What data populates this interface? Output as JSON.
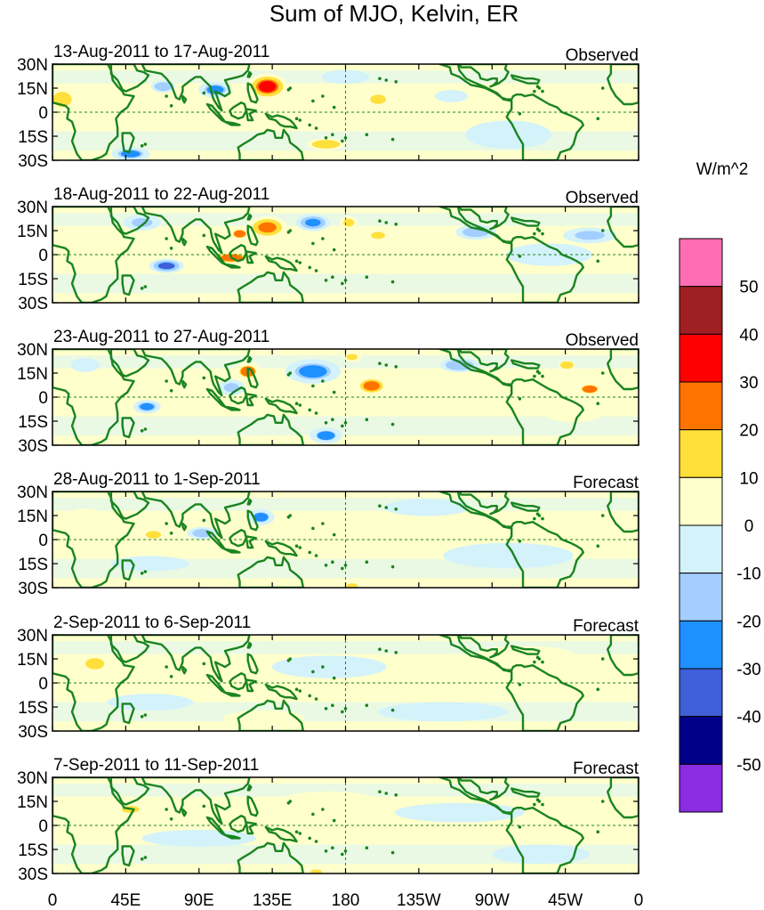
{
  "chart_data": {
    "type": "heatmap",
    "title": "Sum of MJO, Kelvin, ER",
    "units_label": "W/m^2",
    "x_tick_labels": [
      "0",
      "45E",
      "90E",
      "135E",
      "180",
      "135W",
      "90W",
      "45W",
      "0"
    ],
    "x_tick_values_deg_east": [
      0,
      45,
      90,
      135,
      180,
      225,
      270,
      315,
      360
    ],
    "y_tick_labels": [
      "30N",
      "15N",
      "0",
      "15S",
      "30S"
    ],
    "y_tick_values_deg": [
      30,
      15,
      0,
      -15,
      -30
    ],
    "xlim": [
      0,
      360
    ],
    "ylim": [
      -30,
      30
    ],
    "colorbar": {
      "tick_labels": [
        "50",
        "40",
        "30",
        "20",
        "10",
        "0",
        "-10",
        "-20",
        "-30",
        "-40",
        "-50"
      ],
      "levels": [
        -50,
        -40,
        -30,
        -20,
        -10,
        0,
        10,
        20,
        30,
        40,
        50
      ],
      "colors": [
        "#8B2BE2",
        "#00008B",
        "#3F5FD8",
        "#1E90FF",
        "#A3CEFF",
        "#D4F2FA",
        "#FFFFCC",
        "#FFDF3A",
        "#FF7300",
        "#FF0000",
        "#A01F22",
        "#FF6EB4"
      ]
    },
    "land_color": "#1A8420",
    "panels": [
      {
        "period": "13-Aug-2011 to 17-Aug-2011",
        "status": "Observed",
        "anomalies": [
          {
            "lon": 132,
            "lat": 16,
            "rlon": 14,
            "rlat": 9,
            "value": 35
          },
          {
            "lon": 200,
            "lat": 8,
            "rlon": 10,
            "rlat": 6,
            "value": 18
          },
          {
            "lon": 168,
            "lat": -20,
            "rlon": 16,
            "rlat": 5,
            "value": 14
          },
          {
            "lon": 6,
            "lat": 8,
            "rlon": 10,
            "rlat": 8,
            "value": 12
          },
          {
            "lon": 140,
            "lat": -6,
            "rlon": 24,
            "rlat": 8,
            "value": 7
          },
          {
            "lon": 100,
            "lat": 14,
            "rlon": 12,
            "rlat": 6,
            "value": -24
          },
          {
            "lon": 68,
            "lat": 16,
            "rlon": 10,
            "rlat": 5,
            "value": -14
          },
          {
            "lon": 48,
            "lat": -26,
            "rlon": 14,
            "rlat": 5,
            "value": -24
          },
          {
            "lon": 180,
            "lat": 22,
            "rlon": 20,
            "rlat": 6,
            "value": -8
          },
          {
            "lon": 245,
            "lat": 10,
            "rlon": 16,
            "rlat": 6,
            "value": -10
          },
          {
            "lon": 310,
            "lat": 6,
            "rlon": 14,
            "rlat": 5,
            "value": 8
          },
          {
            "lon": 280,
            "lat": -14,
            "rlon": 30,
            "rlat": 10,
            "value": -6
          }
        ]
      },
      {
        "period": "18-Aug-2011 to 22-Aug-2011",
        "status": "Observed",
        "anomalies": [
          {
            "lon": 132,
            "lat": 17,
            "rlon": 14,
            "rlat": 8,
            "value": 30
          },
          {
            "lon": 115,
            "lat": 13,
            "rlon": 8,
            "rlat": 5,
            "value": 22
          },
          {
            "lon": 110,
            "lat": -2,
            "rlon": 16,
            "rlat": 5,
            "value": 24
          },
          {
            "lon": 182,
            "lat": 20,
            "rlon": 7,
            "rlat": 5,
            "value": 18
          },
          {
            "lon": 200,
            "lat": 12,
            "rlon": 8,
            "rlat": 4,
            "value": 14
          },
          {
            "lon": 160,
            "lat": 20,
            "rlon": 12,
            "rlat": 6,
            "value": -30
          },
          {
            "lon": 70,
            "lat": -7,
            "rlon": 12,
            "rlat": 5,
            "value": -32
          },
          {
            "lon": 55,
            "lat": 20,
            "rlon": 14,
            "rlat": 6,
            "value": -20
          },
          {
            "lon": 260,
            "lat": 14,
            "rlon": 16,
            "rlat": 6,
            "value": -16
          },
          {
            "lon": 330,
            "lat": 12,
            "rlon": 20,
            "rlat": 6,
            "value": -20
          },
          {
            "lon": 170,
            "lat": -5,
            "rlon": 30,
            "rlat": 8,
            "value": 8
          },
          {
            "lon": 20,
            "lat": 12,
            "rlon": 14,
            "rlat": 6,
            "value": 10
          },
          {
            "lon": 305,
            "lat": 0,
            "rlon": 30,
            "rlat": 8,
            "value": -6
          }
        ]
      },
      {
        "period": "23-Aug-2011 to 27-Aug-2011",
        "status": "Observed",
        "anomalies": [
          {
            "lon": 120,
            "lat": 16,
            "rlon": 10,
            "rlat": 7,
            "value": 22
          },
          {
            "lon": 196,
            "lat": 7,
            "rlon": 12,
            "rlat": 7,
            "value": 26
          },
          {
            "lon": 184,
            "lat": 25,
            "rlon": 7,
            "rlat": 4,
            "value": 18
          },
          {
            "lon": 330,
            "lat": 5,
            "rlon": 10,
            "rlat": 5,
            "value": 22
          },
          {
            "lon": 316,
            "lat": 20,
            "rlon": 7,
            "rlat": 4,
            "value": 12
          },
          {
            "lon": 160,
            "lat": 16,
            "rlon": 20,
            "rlat": 9,
            "value": -24
          },
          {
            "lon": 110,
            "lat": 6,
            "rlon": 10,
            "rlat": 6,
            "value": -20
          },
          {
            "lon": 168,
            "lat": -24,
            "rlon": 12,
            "rlat": 6,
            "value": -22
          },
          {
            "lon": 58,
            "lat": -6,
            "rlon": 10,
            "rlat": 5,
            "value": -24
          },
          {
            "lon": 250,
            "lat": 20,
            "rlon": 16,
            "rlat": 6,
            "value": -14
          },
          {
            "lon": 320,
            "lat": -10,
            "rlon": 24,
            "rlat": 8,
            "value": 8
          },
          {
            "lon": 20,
            "lat": 20,
            "rlon": 12,
            "rlat": 6,
            "value": -8
          },
          {
            "lon": 240,
            "lat": -4,
            "rlon": 40,
            "rlat": 8,
            "value": 6
          }
        ]
      },
      {
        "period": "28-Aug-2011 to 1-Sep-2011",
        "status": "Forecast",
        "anomalies": [
          {
            "lon": 128,
            "lat": 14,
            "rlon": 10,
            "rlat": 6,
            "value": -22
          },
          {
            "lon": 92,
            "lat": 4,
            "rlon": 12,
            "rlat": 5,
            "value": -16
          },
          {
            "lon": 62,
            "lat": 3,
            "rlon": 8,
            "rlat": 4,
            "value": 12
          },
          {
            "lon": 184,
            "lat": -29,
            "rlon": 6,
            "rlat": 3,
            "value": 12
          },
          {
            "lon": 60,
            "lat": -15,
            "rlon": 30,
            "rlat": 6,
            "value": -7
          },
          {
            "lon": 230,
            "lat": 20,
            "rlon": 30,
            "rlat": 6,
            "value": -6
          },
          {
            "lon": 280,
            "lat": -10,
            "rlon": 40,
            "rlat": 8,
            "value": -5
          },
          {
            "lon": 200,
            "lat": 0,
            "rlon": 30,
            "rlat": 6,
            "value": 5
          },
          {
            "lon": 20,
            "lat": 15,
            "rlon": 12,
            "rlat": 5,
            "value": 6
          }
        ]
      },
      {
        "period": "2-Sep-2011 to 6-Sep-2011",
        "status": "Forecast",
        "anomalies": [
          {
            "lon": 26,
            "lat": 12,
            "rlon": 10,
            "rlat": 6,
            "value": 12
          },
          {
            "lon": 170,
            "lat": 10,
            "rlon": 40,
            "rlat": 8,
            "value": -6
          },
          {
            "lon": 60,
            "lat": -12,
            "rlon": 30,
            "rlat": 6,
            "value": -6
          },
          {
            "lon": 240,
            "lat": -18,
            "rlon": 40,
            "rlat": 6,
            "value": -5
          },
          {
            "lon": 290,
            "lat": 18,
            "rlon": 30,
            "rlat": 5,
            "value": 5
          },
          {
            "lon": 130,
            "lat": -22,
            "rlon": 25,
            "rlat": 5,
            "value": 5
          }
        ]
      },
      {
        "period": "7-Sep-2011 to 11-Sep-2011",
        "status": "Forecast",
        "anomalies": [
          {
            "lon": 48,
            "lat": 10,
            "rlon": 10,
            "rlat": 4,
            "value": 14
          },
          {
            "lon": 162,
            "lat": -29,
            "rlon": 7,
            "rlat": 3,
            "value": 16
          },
          {
            "lon": 170,
            "lat": 15,
            "rlon": 35,
            "rlat": 7,
            "value": 6
          },
          {
            "lon": 90,
            "lat": -8,
            "rlon": 40,
            "rlat": 6,
            "value": -6
          },
          {
            "lon": 250,
            "lat": 8,
            "rlon": 40,
            "rlat": 6,
            "value": -5
          },
          {
            "lon": 300,
            "lat": -18,
            "rlon": 30,
            "rlat": 6,
            "value": -5
          }
        ]
      }
    ]
  }
}
